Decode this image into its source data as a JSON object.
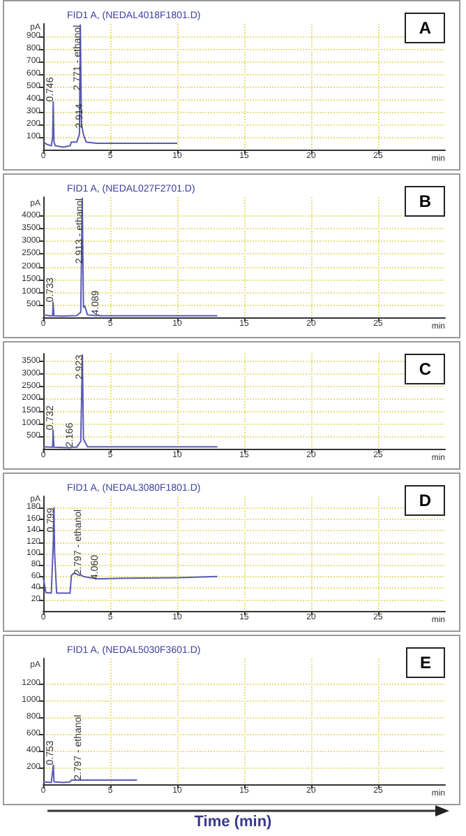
{
  "chart_data": [
    {
      "type": "line",
      "title": "FID1 A, (NEDAL4018F1801.D)",
      "ylabel": "pA",
      "xlabel": "min",
      "annotations": [
        "A",
        {
          "text": "0.746",
          "x": 0.746,
          "y": 380
        },
        {
          "text": "2.771 - ethanol",
          "x": 2.771,
          "y": 990
        },
        {
          "text": "2.914",
          "x": 2.914,
          "y": 170
        }
      ],
      "series": [
        {
          "color": "#5a5ab4",
          "x": [
            0,
            0.3,
            0.6,
            0.7,
            0.746,
            0.8,
            0.9,
            1.5,
            2.0,
            2.1,
            2.5,
            2.7,
            2.771,
            2.85,
            2.914,
            3.0,
            3.2,
            4,
            10
          ],
          "values": [
            60,
            40,
            30,
            100,
            380,
            60,
            30,
            20,
            30,
            60,
            60,
            120,
            990,
            200,
            170,
            120,
            60,
            50,
            50
          ]
        }
      ],
      "xlim": [
        0,
        30
      ],
      "xticks": [
        0,
        5,
        10,
        15,
        20,
        25
      ],
      "ylim": [
        0,
        1000
      ],
      "yticks": [
        100,
        200,
        300,
        400,
        500,
        600,
        700,
        800,
        900
      ],
      "grid": true
    },
    {
      "type": "line",
      "title": "FID1 A, (NEDAL027F2701.D)",
      "ylabel": "pA",
      "xlabel": "min",
      "annotations": [
        "B",
        {
          "text": "0.733",
          "x": 0.733,
          "y": 600
        },
        {
          "text": "2.913 - ethanol",
          "x": 2.913,
          "y": 4700
        },
        {
          "text": "4.089",
          "x": 4.089,
          "y": 100
        }
      ],
      "series": [
        {
          "color": "#5a5ab4",
          "x": [
            0,
            0.5,
            0.7,
            0.733,
            0.8,
            1.5,
            2.0,
            2.5,
            2.8,
            2.913,
            3.0,
            3.1,
            3.3,
            4.0,
            4.089,
            4.2,
            13
          ],
          "values": [
            100,
            60,
            60,
            600,
            60,
            50,
            60,
            70,
            200,
            4700,
            400,
            450,
            100,
            60,
            100,
            60,
            60
          ]
        }
      ],
      "xlim": [
        0,
        30
      ],
      "xticks": [
        0,
        5,
        10,
        15,
        20,
        25
      ],
      "ylim": [
        0,
        4750
      ],
      "yticks": [
        500,
        1000,
        1500,
        2000,
        2500,
        3000,
        3500,
        4000
      ],
      "grid": true
    },
    {
      "type": "line",
      "xlabel": "min",
      "annotations": [
        "C",
        {
          "text": "0.732",
          "x": 0.732,
          "y": 750
        },
        {
          "text": "2.166",
          "x": 2.166,
          "y": 60
        },
        {
          "text": "2.923",
          "x": 2.923,
          "y": 3750
        }
      ],
      "series": [
        {
          "color": "#5a5ab4",
          "x": [
            0,
            0.7,
            0.732,
            0.8,
            2.0,
            2.166,
            2.5,
            2.8,
            2.923,
            3.0,
            3.3,
            13
          ],
          "values": [
            80,
            60,
            750,
            60,
            40,
            60,
            60,
            300,
            3750,
            400,
            80,
            80
          ]
        }
      ],
      "xlim": [
        0,
        30
      ],
      "xticks": [
        0,
        5,
        10,
        15,
        20,
        25
      ],
      "ylim": [
        0,
        3800
      ],
      "yticks": [
        500,
        1000,
        1500,
        2000,
        2500,
        3000,
        3500
      ],
      "grid": true
    },
    {
      "type": "line",
      "title": "FID1 A, (NEDAL3080F1801.D)",
      "ylabel": "pA",
      "xlabel": "min",
      "annotations": [
        "D",
        {
          "text": "0.799",
          "x": 0.799,
          "y": 180
        },
        {
          "text": "2.797 - ethanol",
          "x": 2.797,
          "y": 63
        },
        {
          "text": "4.060",
          "x": 4.06,
          "y": 55
        }
      ],
      "series": [
        {
          "color": "#5a5ab4",
          "x": [
            0,
            0.2,
            0.6,
            0.75,
            0.799,
            0.85,
            1.0,
            1.5,
            2.0,
            2.1,
            2.3,
            2.7,
            2.797,
            3.0,
            3.5,
            4.0,
            4.06,
            4.5,
            6,
            10,
            13
          ],
          "values": [
            58,
            32,
            31,
            120,
            180,
            100,
            31,
            31,
            31,
            62,
            66,
            62,
            63,
            60,
            58,
            56,
            55,
            56,
            57,
            58,
            60
          ]
        }
      ],
      "xlim": [
        0,
        30
      ],
      "xticks": [
        0,
        5,
        10,
        15,
        20,
        25
      ],
      "ylim": [
        0,
        200
      ],
      "yticks": [
        20,
        40,
        60,
        80,
        100,
        120,
        140,
        160,
        180
      ],
      "grid": true
    },
    {
      "type": "line",
      "title": "FID1 A, (NEDAL5030F3601.D)",
      "ylabel": "pA",
      "xlabel": "min",
      "annotations": [
        "E",
        "Time (min)",
        {
          "text": "0.753",
          "x": 0.753,
          "y": 230
        },
        {
          "text": "2.797 - ethanol",
          "x": 2.797,
          "y": 50
        }
      ],
      "series": [
        {
          "color": "#5a5ab4",
          "x": [
            0,
            0.6,
            0.753,
            0.8,
            1.5,
            2.0,
            2.1,
            2.7,
            2.797,
            3.0,
            7
          ],
          "values": [
            30,
            20,
            230,
            30,
            20,
            30,
            50,
            50,
            50,
            50,
            50
          ]
        }
      ],
      "xlim": [
        0,
        30
      ],
      "xticks": [
        0,
        5,
        10,
        15,
        20,
        25
      ],
      "ylim": [
        0,
        1500
      ],
      "yticks": [
        200,
        400,
        600,
        800,
        1000,
        1200
      ],
      "grid": true
    }
  ]
}
